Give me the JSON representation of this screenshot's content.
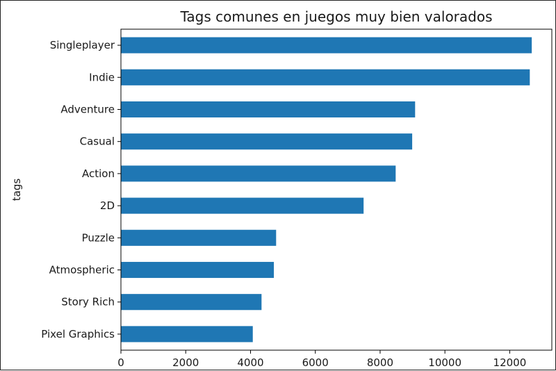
{
  "chart_data": {
    "type": "bar",
    "orientation": "horizontal",
    "title": "Tags comunes en juegos muy bien valorados",
    "xlabel": "",
    "ylabel": "tags",
    "categories": [
      "Singleplayer",
      "Indie",
      "Adventure",
      "Casual",
      "Action",
      "2D",
      "Puzzle",
      "Atmospheric",
      "Story Rich",
      "Pixel Graphics"
    ],
    "values": [
      12680,
      12620,
      9080,
      8990,
      8480,
      7490,
      4790,
      4720,
      4340,
      4070
    ],
    "xlim": [
      0,
      13300
    ],
    "xticks": [
      "0",
      "2000",
      "4000",
      "6000",
      "8000",
      "10000",
      "12000"
    ],
    "grid": false,
    "legend": "none",
    "bar_color": "#1f77b4"
  }
}
